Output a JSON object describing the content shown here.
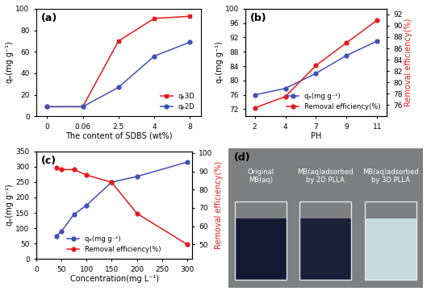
{
  "chart_data": [
    {
      "type": "line",
      "panel_label": "(a)",
      "x_label": "The content of SDBS (wt%)",
      "y_label": "qₑ(mg g⁻¹)",
      "categories": [
        "0",
        "0.06",
        "2.5",
        "4",
        "8"
      ],
      "ylim": [
        0,
        100
      ],
      "yticks": [
        0,
        20,
        40,
        60,
        80,
        100
      ],
      "legend": "lower right",
      "series": [
        {
          "name": "qₑ3D",
          "color": "#e41a1c",
          "marker": "square",
          "values": [
            9,
            9,
            70,
            91,
            93
          ]
        },
        {
          "name": "qₑ2D",
          "color": "#3f51b5",
          "marker": "circle",
          "values": [
            9,
            9,
            27,
            56,
            69
          ]
        }
      ]
    },
    {
      "type": "line",
      "panel_label": "(b)",
      "x_label": "PH",
      "y_label": "qₑ(mg g⁻¹)",
      "y2_label": "Removal efficiency(%)",
      "categories": [
        "2",
        "4",
        "7",
        "9",
        "11"
      ],
      "ylim": [
        70,
        100
      ],
      "yticks": [
        72,
        76,
        80,
        84,
        88,
        92,
        96,
        100
      ],
      "y2lim": [
        74,
        93
      ],
      "y2ticks": [
        76,
        78,
        80,
        82,
        84,
        86,
        88,
        90,
        92
      ],
      "legend": "lower right",
      "series": [
        {
          "name": "qₑ(mg g⁻¹)",
          "color": "#3f51b5",
          "marker": "circle",
          "values": [
            76,
            77.8,
            82,
            87,
            91
          ]
        },
        {
          "name": "Removal efficiency(%)",
          "color": "#e41a1c",
          "marker": "circle",
          "axis": "y2",
          "values": [
            75.5,
            77.5,
            83,
            87,
            91
          ]
        }
      ]
    },
    {
      "type": "line",
      "panel_label": "(c)",
      "x_label": "Concentration(mg L⁻¹)",
      "y_label": "qₑ(mg g⁻¹)",
      "y2_label": "Removal efficiency(%)",
      "x": [
        40,
        50,
        75,
        100,
        150,
        200,
        300
      ],
      "xlim": [
        0,
        310
      ],
      "xticks": [
        0,
        50,
        100,
        150,
        200,
        250,
        300
      ],
      "ylim": [
        0,
        350
      ],
      "yticks": [
        0,
        50,
        100,
        150,
        200,
        250,
        300,
        350
      ],
      "y2lim": [
        42,
        101
      ],
      "y2ticks": [
        50,
        60,
        70,
        80,
        90,
        100
      ],
      "legend": "lower center",
      "series": [
        {
          "name": "qₑ(mg g⁻¹)",
          "color": "#3f51b5",
          "marker": "circle",
          "values": [
            75,
            90,
            145,
            175,
            250,
            268,
            315
          ]
        },
        {
          "name": "Removal efficiency(%)",
          "color": "#e41a1c",
          "marker": "circle",
          "axis": "y2",
          "values": [
            92,
            91,
            91,
            88,
            84,
            67,
            50
          ]
        }
      ]
    }
  ],
  "photo": {
    "panel_label": "(d)",
    "beakers": [
      {
        "label_lines": [
          "Original",
          "MB(aq)"
        ],
        "color": "#121a33"
      },
      {
        "label_lines": [
          "MB(aq)adsorbed",
          "by 2D PLLA"
        ],
        "color": "#18203a"
      },
      {
        "label_lines": [
          "MB(aq)adsorbed",
          "by 3D PLLA"
        ],
        "color": "#c9dadc"
      }
    ]
  }
}
